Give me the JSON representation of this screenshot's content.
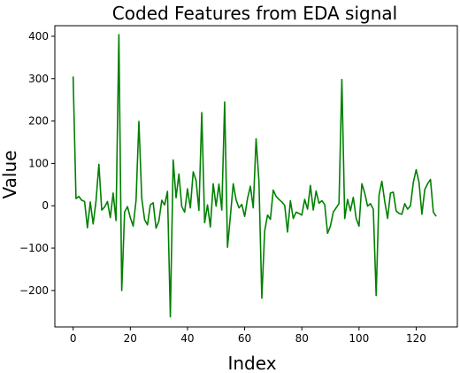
{
  "chart_data": {
    "type": "line",
    "title": "Coded Features from EDA signal",
    "xlabel": "Index",
    "ylabel": "Value",
    "xlim": [
      -6.4,
      134.4
    ],
    "ylim": [
      -286,
      425
    ],
    "xticks": [
      0,
      20,
      40,
      60,
      80,
      100,
      120
    ],
    "yticks": [
      -200,
      -100,
      0,
      100,
      200,
      300,
      400
    ],
    "grid": false,
    "legend": "none",
    "series": [
      {
        "color": "#008000",
        "x": [
          0,
          1,
          2,
          3,
          4,
          5,
          6,
          7,
          8,
          9,
          10,
          11,
          12,
          13,
          14,
          15,
          16,
          17,
          18,
          19,
          20,
          21,
          22,
          23,
          24,
          25,
          26,
          27,
          28,
          29,
          30,
          31,
          32,
          33,
          34,
          35,
          36,
          37,
          38,
          39,
          40,
          41,
          42,
          43,
          44,
          45,
          46,
          47,
          48,
          49,
          50,
          51,
          52,
          53,
          54,
          55,
          56,
          57,
          58,
          59,
          60,
          61,
          62,
          63,
          64,
          65,
          66,
          67,
          68,
          69,
          70,
          71,
          72,
          73,
          74,
          75,
          76,
          77,
          78,
          79,
          80,
          81,
          82,
          83,
          84,
          85,
          86,
          87,
          88,
          89,
          90,
          91,
          92,
          93,
          94,
          95,
          96,
          97,
          98,
          99,
          100,
          101,
          102,
          103,
          104,
          105,
          106,
          107,
          108,
          109,
          110,
          111,
          112,
          113,
          114,
          115,
          116,
          117,
          118,
          119,
          120,
          121,
          122,
          123,
          124,
          125,
          126,
          127
        ],
        "values": [
          305,
          17,
          22,
          13,
          10,
          -52,
          9,
          -43,
          11,
          98,
          -10,
          -3,
          10,
          -28,
          30,
          -35,
          404,
          -200,
          -15,
          -2,
          -28,
          -48,
          12,
          199,
          18,
          -33,
          -45,
          2,
          7,
          -53,
          -36,
          13,
          2,
          34,
          -262,
          108,
          19,
          75,
          -2,
          -15,
          40,
          -5,
          80,
          60,
          -11,
          220,
          -40,
          2,
          -50,
          52,
          -1,
          51,
          -10,
          245,
          -98,
          -25,
          52,
          14,
          -5,
          3,
          -25,
          17,
          46,
          -5,
          158,
          58,
          -218,
          -60,
          -22,
          -32,
          37,
          22,
          15,
          9,
          1,
          -62,
          12,
          -30,
          -15,
          -18,
          -22,
          15,
          -8,
          48,
          -10,
          35,
          6,
          12,
          3,
          -65,
          -48,
          -15,
          -5,
          5,
          298,
          -30,
          15,
          -12,
          20,
          -30,
          -48,
          52,
          30,
          -1,
          5,
          -8,
          -212,
          25,
          58,
          10,
          -30,
          30,
          32,
          -12,
          -18,
          -20,
          5,
          -8,
          0,
          55,
          85,
          55,
          -20,
          38,
          52,
          62,
          -15,
          -25
        ]
      }
    ]
  }
}
